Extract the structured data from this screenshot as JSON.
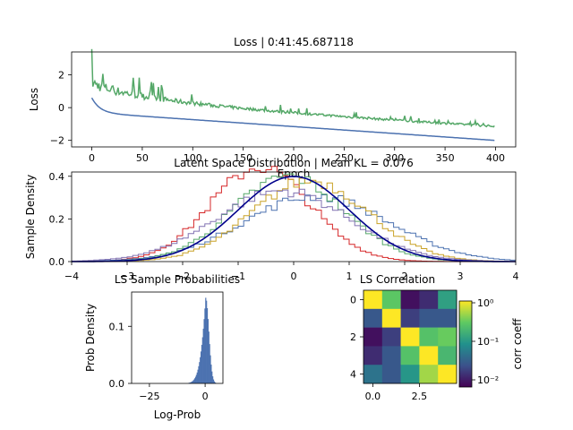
{
  "chart_data": [
    {
      "type": "line",
      "title": "Loss | 0:41:45.687118",
      "xlabel": "Epoch",
      "ylabel": "Loss",
      "xlim": [
        -20,
        420
      ],
      "ylim": [
        -2.4,
        3.4
      ],
      "xticks": [
        0,
        50,
        100,
        150,
        200,
        250,
        300,
        350,
        400
      ],
      "yticks": [
        -2,
        0,
        2
      ],
      "series": [
        {
          "color": "#4c72b0",
          "style": "smooth-decay",
          "start": 0.6,
          "end": -2.0,
          "n": 400
        },
        {
          "color": "#55a868",
          "style": "noisy-decay",
          "start": 1.2,
          "end": -1.2,
          "n": 400
        }
      ]
    },
    {
      "type": "line",
      "title": "Latent Space Distribution | Mean KL = 0.076",
      "xlabel": "",
      "ylabel": "Sample Density",
      "xlim": [
        -4,
        4
      ],
      "ylim": [
        0,
        0.42
      ],
      "xticks": [
        -4,
        -3,
        -2,
        -1,
        0,
        1,
        2,
        3,
        4
      ],
      "yticks": [
        0.0,
        0.2,
        0.4
      ],
      "reference": {
        "type": "normal",
        "mean": 0,
        "std": 1,
        "color": "#00008b"
      },
      "series": [
        {
          "color": "#d62728",
          "mean": -0.6,
          "std": 0.9
        },
        {
          "color": "#4c72b0",
          "mean": 0.4,
          "std": 1.3
        },
        {
          "color": "#55a868",
          "mean": -0.1,
          "std": 1.0
        },
        {
          "color": "#c9a227",
          "mean": 0.3,
          "std": 1.05
        },
        {
          "color": "#8172b2",
          "mean": -0.2,
          "std": 1.2
        }
      ]
    },
    {
      "type": "bar",
      "title": "LS Sample Probabilities",
      "xlabel": "Log-Prob",
      "ylabel": "Prob Density",
      "xlim": [
        -33,
        8
      ],
      "ylim": [
        0,
        0.16
      ],
      "xticks": [
        -25,
        0
      ],
      "yticks": [
        0.0,
        0.1
      ],
      "color": "#4c72b0",
      "histogram": {
        "mode": 0.2,
        "peak": 0.15,
        "left_tail": 5.5,
        "right_tail": 1.8
      }
    },
    {
      "type": "heatmap",
      "title": "LS Correlation",
      "colorbar_label": "corr coeff",
      "colorbar_ticks": [
        "10⁰",
        "10⁻¹",
        "10⁻²"
      ],
      "xticks": [
        "0.0",
        "2.5"
      ],
      "yticks": [
        "0",
        "2",
        "4"
      ],
      "matrix": [
        [
          1.0,
          0.28,
          0.01,
          0.015,
          0.12
        ],
        [
          0.03,
          1.0,
          0.02,
          0.03,
          0.03
        ],
        [
          0.01,
          0.02,
          1.0,
          0.25,
          0.32
        ],
        [
          0.015,
          0.03,
          0.25,
          1.0,
          0.2
        ],
        [
          0.05,
          0.03,
          0.1,
          0.5,
          1.0
        ]
      ]
    }
  ]
}
